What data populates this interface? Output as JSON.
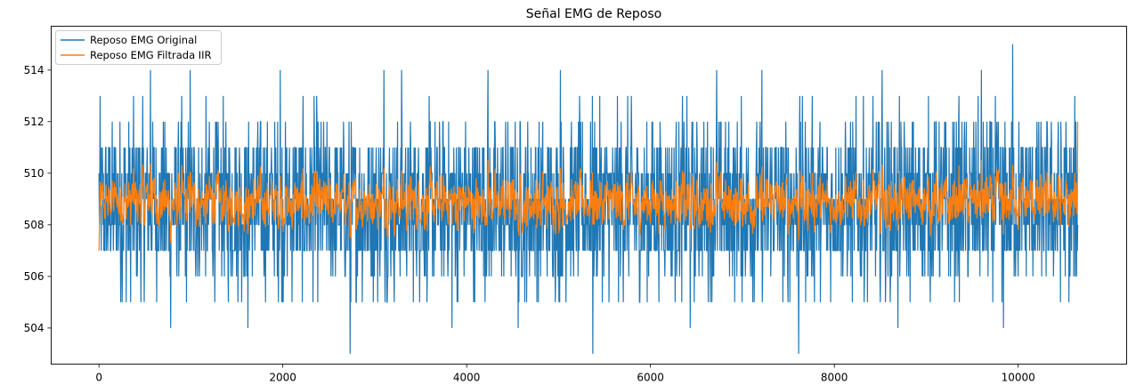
{
  "chart_data": {
    "type": "line",
    "title": "Señal EMG de Reposo",
    "xlabel": "",
    "ylabel": "",
    "xlim": [
      -520,
      11180
    ],
    "ylim": [
      502.6,
      515.7
    ],
    "x_ticks": [
      0,
      2000,
      4000,
      6000,
      8000,
      10000
    ],
    "x_tick_labels": [
      "0",
      "2000",
      "4000",
      "6000",
      "8000",
      "10000"
    ],
    "y_ticks": [
      504,
      506,
      508,
      510,
      512,
      514
    ],
    "y_tick_labels": [
      "504",
      "506",
      "508",
      "510",
      "512",
      "514"
    ],
    "grid": false,
    "legend_position": "top-left",
    "x_range": [
      0,
      10650
    ],
    "series": [
      {
        "name": "Reposo EMG Original",
        "color": "#1f77b4",
        "baseline_band": [
          507,
          511
        ],
        "typical_range": [
          505,
          512
        ],
        "extremes": [
          {
            "x": 2730,
            "y": 503
          },
          {
            "x": 5370,
            "y": 503
          },
          {
            "x": 7610,
            "y": 503
          },
          {
            "x": 9940,
            "y": 515
          },
          {
            "x": 560,
            "y": 514
          },
          {
            "x": 990,
            "y": 514
          },
          {
            "x": 1970,
            "y": 514
          },
          {
            "x": 3100,
            "y": 514
          },
          {
            "x": 3290,
            "y": 514
          },
          {
            "x": 4230,
            "y": 514
          },
          {
            "x": 5020,
            "y": 514
          },
          {
            "x": 6720,
            "y": 514
          },
          {
            "x": 7210,
            "y": 514
          },
          {
            "x": 8520,
            "y": 514
          },
          {
            "x": 9600,
            "y": 514
          },
          {
            "x": 780,
            "y": 504
          },
          {
            "x": 1620,
            "y": 504
          },
          {
            "x": 3840,
            "y": 504
          },
          {
            "x": 4560,
            "y": 504
          },
          {
            "x": 6430,
            "y": 504
          },
          {
            "x": 8690,
            "y": 504
          },
          {
            "x": 9840,
            "y": 504
          }
        ]
      },
      {
        "name": "Reposo EMG Filtrada IIR",
        "color": "#ff7f0e",
        "mean": 509,
        "typical_range": [
          507.6,
          510.4
        ],
        "start_value": 507,
        "end_value": 512
      }
    ]
  }
}
